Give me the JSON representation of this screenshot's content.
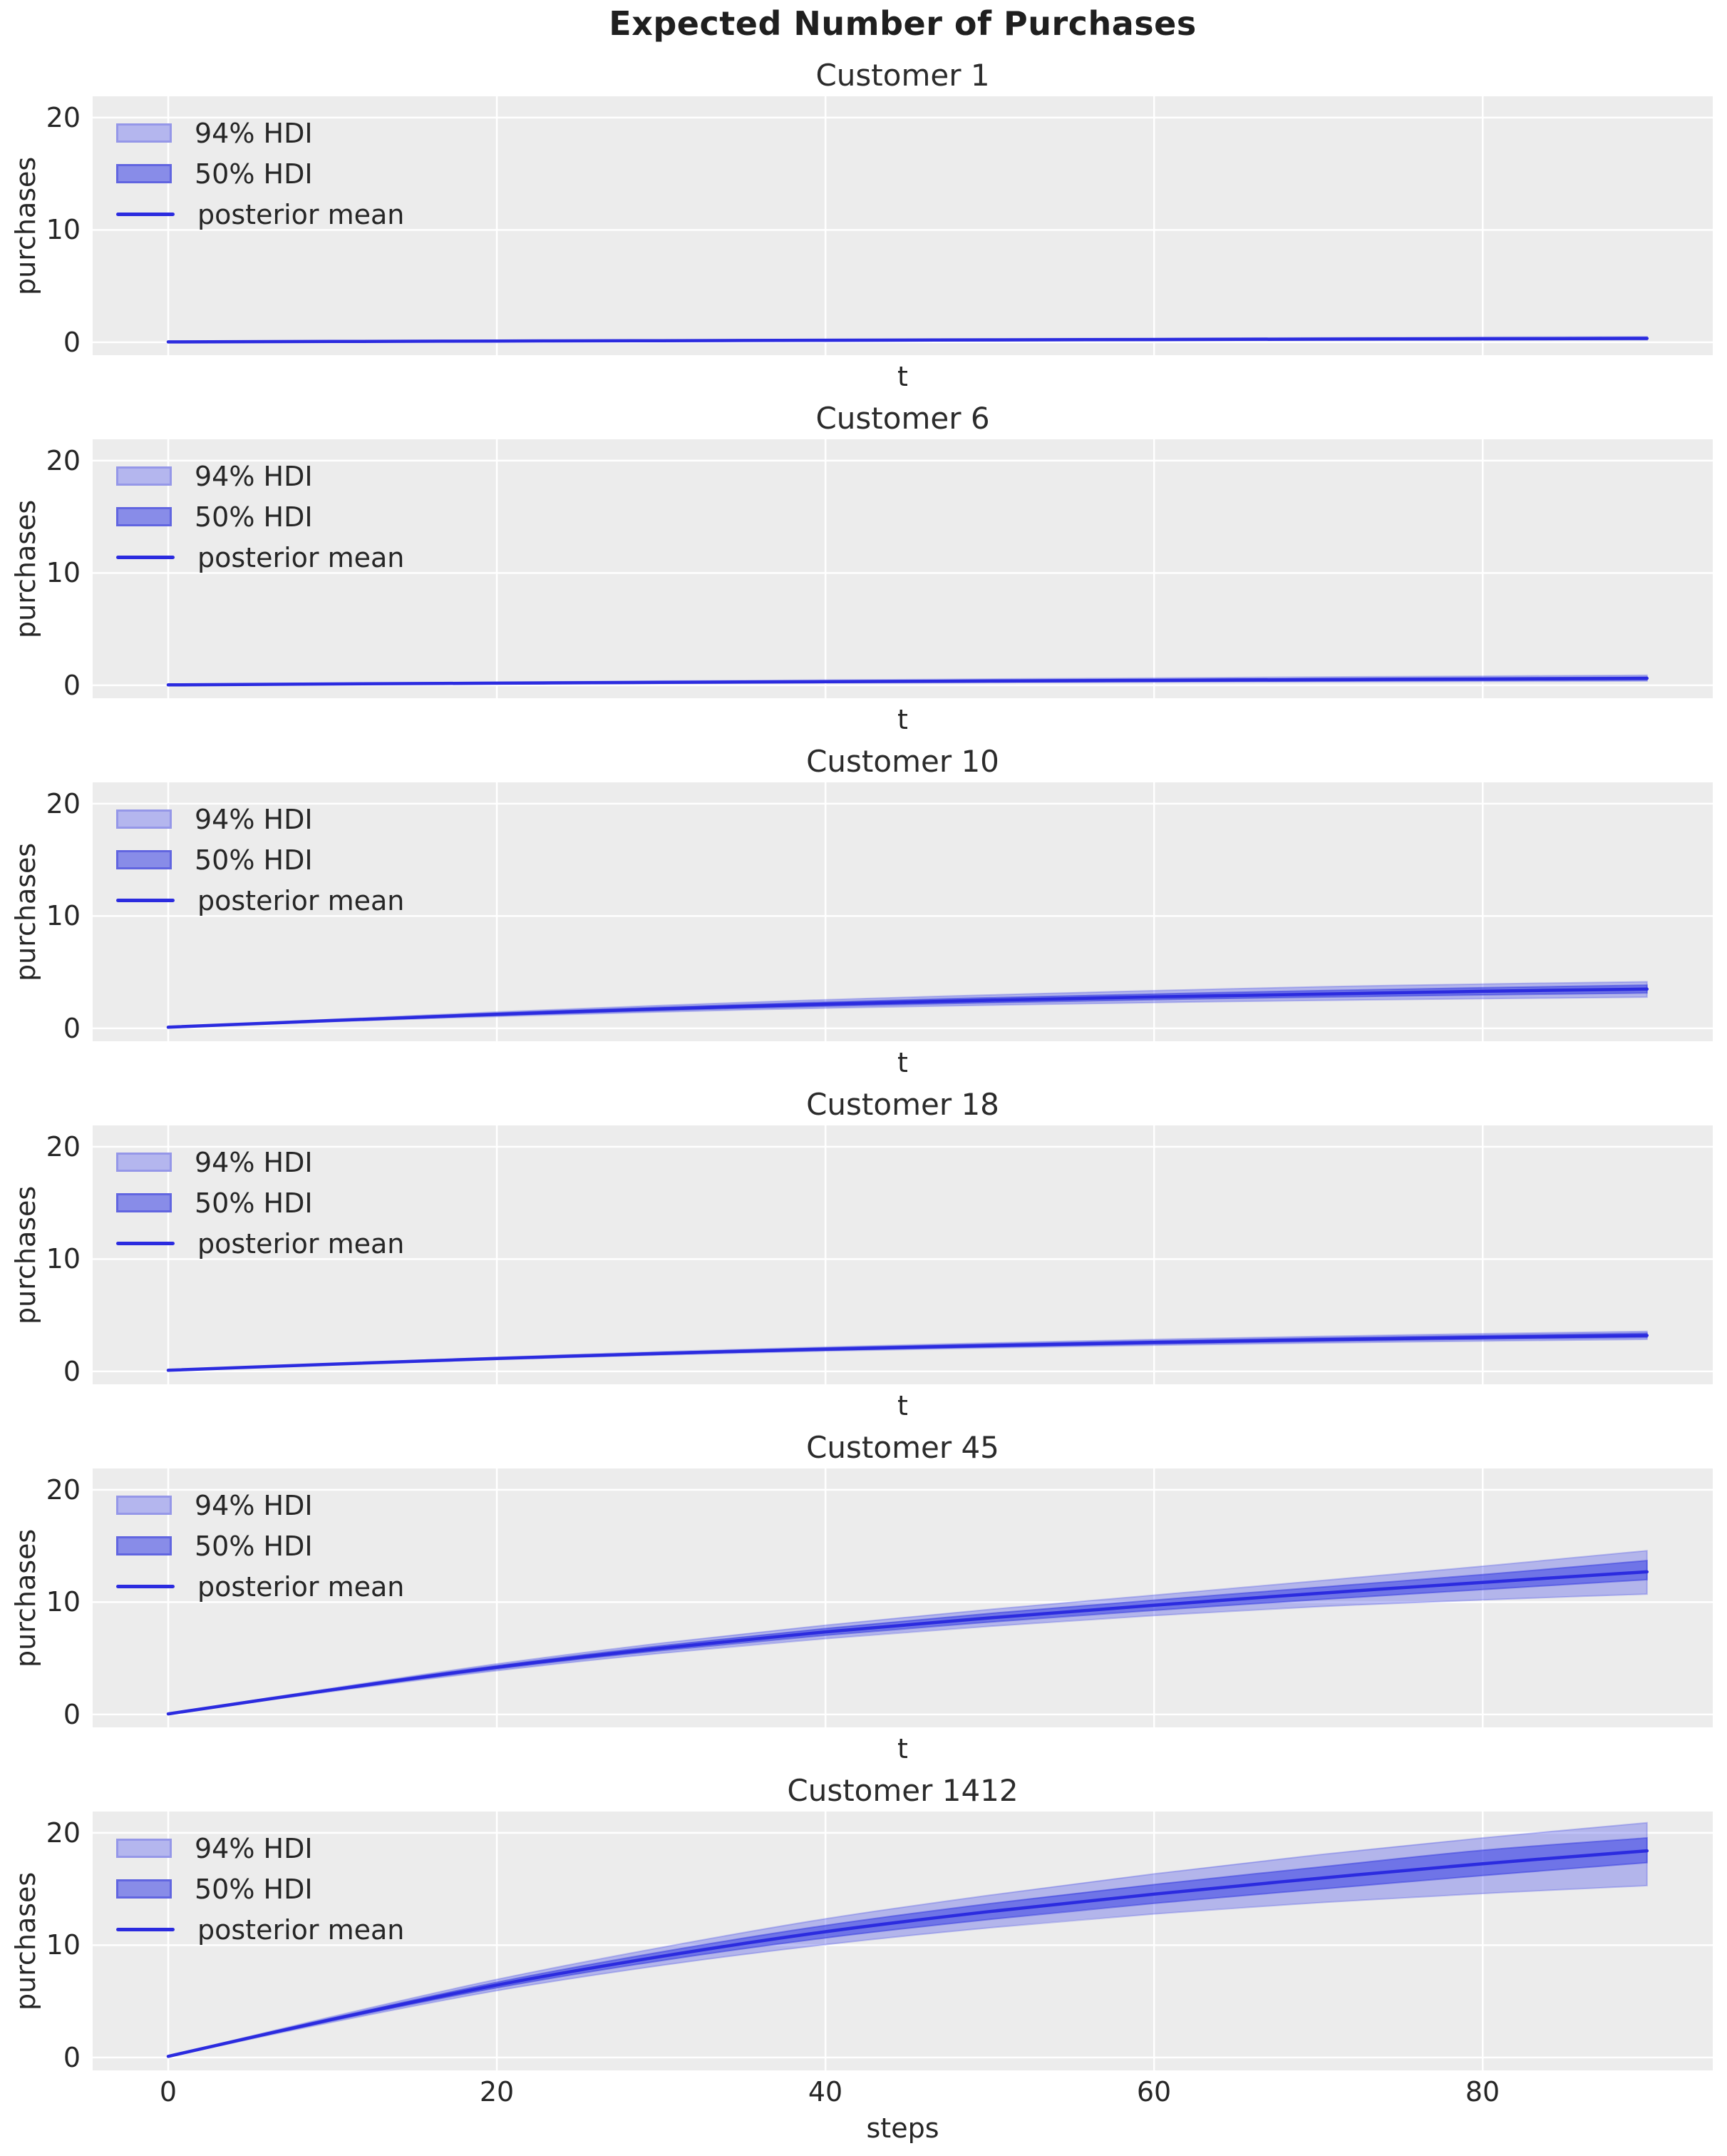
{
  "figure": {
    "title": "Expected Number of Purchases",
    "ylabel": "purchases",
    "legend_labels": [
      "94% HDI",
      "50% HDI",
      "posterior mean"
    ],
    "legend_position": "upper left",
    "grid": true,
    "xticks": [
      0,
      20,
      40,
      60,
      80
    ],
    "yticks": [
      0,
      10,
      20
    ],
    "xtick_labels": [
      "0",
      "20",
      "40",
      "60",
      "80"
    ],
    "ytick_labels": [
      "0",
      "10",
      "20"
    ],
    "colors": {
      "axes_bg": "#ececec",
      "grid": "#ffffff",
      "mean_line": "#2b2bdf",
      "hdi94_fill": "rgba(75,80,235,0.35)",
      "hdi94_edge": "rgba(70,76,230,0.30)",
      "hdi50_fill": "rgba(55,62,228,0.55)",
      "hdi50_edge": "rgba(45,50,222,0.45)",
      "text": "#262626"
    }
  },
  "chart_data": [
    {
      "type": "line",
      "title": "Customer 1",
      "xlabel": "t",
      "ylabel": "purchases",
      "xlim": [
        -4.6,
        94
      ],
      "ylim": [
        -1.15,
        21.9
      ],
      "x": [
        0,
        10,
        20,
        30,
        40,
        50,
        60,
        70,
        80,
        90
      ],
      "series": [
        {
          "name": "posterior mean",
          "values": [
            0.03,
            0.07,
            0.11,
            0.14,
            0.18,
            0.21,
            0.24,
            0.28,
            0.31,
            0.34
          ]
        },
        {
          "name": "94% HDI",
          "lower": [
            0.02,
            0.05,
            0.07,
            0.09,
            0.11,
            0.13,
            0.15,
            0.17,
            0.19,
            0.21
          ],
          "upper": [
            0.04,
            0.1,
            0.16,
            0.21,
            0.26,
            0.31,
            0.35,
            0.4,
            0.45,
            0.5
          ]
        },
        {
          "name": "50% HDI",
          "lower": [
            0.03,
            0.06,
            0.09,
            0.12,
            0.14,
            0.17,
            0.19,
            0.22,
            0.24,
            0.27
          ],
          "upper": [
            0.03,
            0.08,
            0.13,
            0.17,
            0.21,
            0.25,
            0.29,
            0.33,
            0.37,
            0.4
          ]
        }
      ]
    },
    {
      "type": "line",
      "title": "Customer 6",
      "xlabel": "t",
      "ylabel": "purchases",
      "xlim": [
        -4.6,
        94
      ],
      "ylim": [
        -1.15,
        21.9
      ],
      "x": [
        0,
        10,
        20,
        30,
        40,
        50,
        60,
        70,
        80,
        90
      ],
      "series": [
        {
          "name": "posterior mean",
          "values": [
            0.04,
            0.12,
            0.19,
            0.26,
            0.32,
            0.38,
            0.44,
            0.5,
            0.56,
            0.62
          ]
        },
        {
          "name": "94% HDI",
          "lower": [
            0.03,
            0.08,
            0.13,
            0.17,
            0.21,
            0.24,
            0.28,
            0.31,
            0.35,
            0.38
          ],
          "upper": [
            0.05,
            0.17,
            0.28,
            0.38,
            0.47,
            0.56,
            0.65,
            0.74,
            0.82,
            0.9
          ]
        },
        {
          "name": "50% HDI",
          "lower": [
            0.03,
            0.1,
            0.16,
            0.21,
            0.26,
            0.31,
            0.35,
            0.4,
            0.44,
            0.49
          ],
          "upper": [
            0.05,
            0.14,
            0.23,
            0.31,
            0.38,
            0.45,
            0.52,
            0.59,
            0.66,
            0.73
          ]
        }
      ]
    },
    {
      "type": "line",
      "title": "Customer 10",
      "xlabel": "t",
      "ylabel": "purchases",
      "xlim": [
        -4.6,
        94
      ],
      "ylim": [
        -1.15,
        21.9
      ],
      "x": [
        0,
        10,
        20,
        30,
        40,
        50,
        60,
        70,
        80,
        90
      ],
      "series": [
        {
          "name": "posterior mean",
          "values": [
            0.1,
            0.7,
            1.25,
            1.73,
            2.15,
            2.5,
            2.8,
            3.05,
            3.3,
            3.5
          ]
        },
        {
          "name": "94% HDI",
          "lower": [
            0.08,
            0.6,
            1.06,
            1.46,
            1.8,
            2.06,
            2.3,
            2.48,
            2.64,
            2.78
          ],
          "upper": [
            0.12,
            0.8,
            1.46,
            2.04,
            2.55,
            2.98,
            3.36,
            3.7,
            3.95,
            4.15
          ]
        },
        {
          "name": "50% HDI",
          "lower": [
            0.09,
            0.65,
            1.16,
            1.6,
            1.97,
            2.28,
            2.55,
            2.78,
            2.98,
            3.15
          ],
          "upper": [
            0.11,
            0.75,
            1.35,
            1.88,
            2.34,
            2.73,
            3.06,
            3.36,
            3.62,
            3.85
          ]
        }
      ]
    },
    {
      "type": "line",
      "title": "Customer 18",
      "xlabel": "t",
      "ylabel": "purchases",
      "xlim": [
        -4.6,
        94
      ],
      "ylim": [
        -1.15,
        21.9
      ],
      "x": [
        0,
        10,
        20,
        30,
        40,
        50,
        60,
        70,
        80,
        90
      ],
      "series": [
        {
          "name": "posterior mean",
          "values": [
            0.1,
            0.65,
            1.15,
            1.6,
            1.98,
            2.3,
            2.58,
            2.82,
            3.02,
            3.2
          ]
        },
        {
          "name": "94% HDI",
          "lower": [
            0.09,
            0.6,
            1.06,
            1.46,
            1.81,
            2.09,
            2.33,
            2.53,
            2.7,
            2.85
          ],
          "upper": [
            0.11,
            0.7,
            1.25,
            1.75,
            2.17,
            2.53,
            2.85,
            3.12,
            3.36,
            3.56
          ]
        },
        {
          "name": "50% HDI",
          "lower": [
            0.09,
            0.62,
            1.1,
            1.53,
            1.89,
            2.19,
            2.45,
            2.68,
            2.87,
            3.03
          ],
          "upper": [
            0.11,
            0.68,
            1.2,
            1.68,
            2.08,
            2.42,
            2.72,
            2.98,
            3.2,
            3.4
          ]
        }
      ]
    },
    {
      "type": "line",
      "title": "Customer 45",
      "xlabel": "t",
      "ylabel": "purchases",
      "xlim": [
        -4.6,
        94
      ],
      "ylim": [
        -1.15,
        21.9
      ],
      "x": [
        0,
        10,
        20,
        30,
        40,
        50,
        60,
        70,
        80,
        90
      ],
      "series": [
        {
          "name": "posterior mean",
          "values": [
            0.05,
            2.2,
            4.2,
            5.9,
            7.35,
            8.6,
            9.72,
            10.78,
            11.76,
            12.7
          ]
        },
        {
          "name": "94% HDI",
          "lower": [
            0.04,
            2.05,
            3.9,
            5.45,
            6.75,
            7.85,
            8.8,
            9.6,
            10.2,
            10.72
          ],
          "upper": [
            0.06,
            2.35,
            4.5,
            6.35,
            7.95,
            9.35,
            10.62,
            11.9,
            13.2,
            14.58
          ]
        },
        {
          "name": "50% HDI",
          "lower": [
            0.04,
            2.12,
            4.05,
            5.68,
            7.05,
            8.22,
            9.27,
            10.22,
            11.12,
            12.0
          ],
          "upper": [
            0.06,
            2.28,
            4.35,
            6.12,
            7.65,
            9.0,
            10.18,
            11.32,
            12.45,
            13.7
          ]
        }
      ]
    },
    {
      "type": "line",
      "title": "Customer 1412",
      "xlabel": "steps",
      "ylabel": "purchases",
      "xlim": [
        -4.6,
        94
      ],
      "ylim": [
        -1.15,
        21.9
      ],
      "x": [
        0,
        10,
        20,
        30,
        40,
        50,
        60,
        70,
        80,
        90
      ],
      "series": [
        {
          "name": "posterior mean",
          "values": [
            0.1,
            3.4,
            6.45,
            9.0,
            11.2,
            13.0,
            14.55,
            15.95,
            17.25,
            18.4
          ]
        },
        {
          "name": "94% HDI",
          "lower": [
            0.08,
            3.15,
            5.95,
            8.2,
            10.05,
            11.55,
            12.78,
            13.78,
            14.6,
            15.3
          ],
          "upper": [
            0.12,
            3.65,
            6.95,
            9.8,
            12.35,
            14.45,
            16.35,
            18.05,
            19.55,
            20.9
          ]
        },
        {
          "name": "50% HDI",
          "lower": [
            0.09,
            3.28,
            6.2,
            8.62,
            10.65,
            12.3,
            13.72,
            14.98,
            16.2,
            17.35
          ],
          "upper": [
            0.11,
            3.52,
            6.7,
            9.4,
            11.76,
            13.7,
            15.4,
            16.95,
            18.45,
            19.55
          ]
        }
      ]
    }
  ]
}
